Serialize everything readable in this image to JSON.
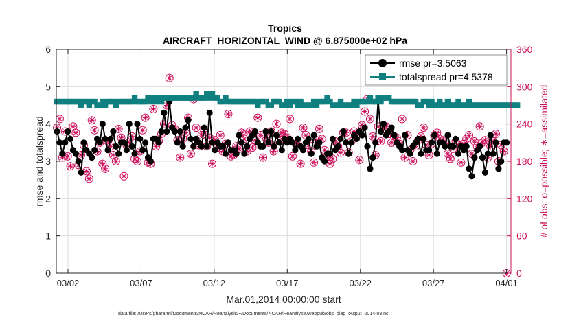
{
  "chart_data": {
    "type": "line",
    "title_line1": "Tropics",
    "title_line2": "AIRCRAFT_HORIZONTAL_WIND @ 6.875000e+02 hPa",
    "xlabel": "Mar.01,2014 00:00:00 start",
    "ylabel_left": "rmse and totalspread",
    "ylabel_right": "# of obs: o=possible; ∗=assimilated",
    "footer": "data file: /Users/gharamti/Documents/NCAR/Reanalysis/~/Documents/NCAR/Reanalysis/webpub/obs_diag_output_2014-03.nc",
    "x_range_days": [
      0.2,
      31.3
    ],
    "ylim_left": [
      0,
      6
    ],
    "ylim_right": [
      0,
      360
    ],
    "x_ticks": [
      {
        "day": 1,
        "label": "03/02"
      },
      {
        "day": 6,
        "label": "03/07"
      },
      {
        "day": 11,
        "label": "03/12"
      },
      {
        "day": 16,
        "label": "03/17"
      },
      {
        "day": 21,
        "label": "03/22"
      },
      {
        "day": 26,
        "label": "03/27"
      },
      {
        "day": 31,
        "label": "04/01"
      }
    ],
    "y_ticks_left": [
      0,
      1,
      2,
      3,
      4,
      5,
      6
    ],
    "y_ticks_right": [
      0,
      60,
      120,
      180,
      240,
      300,
      360
    ],
    "colors": {
      "rmse": "#000000",
      "spread": "#0f7f7f",
      "obs": "#cc0f5a"
    },
    "legend": [
      {
        "series": "rmse",
        "label": "rmse pr=3.5063"
      },
      {
        "series": "spread",
        "label": "totalspread pr=4.5378"
      }
    ],
    "series_rmse": [
      3.8,
      3.5,
      3.2,
      3.5,
      3.8,
      3.6,
      3.3,
      3.2,
      3.0,
      2.7,
      3.5,
      3.3,
      3.2,
      3.1,
      3.3,
      3.6,
      3.5,
      4.0,
      3.6,
      3.3,
      3.6,
      3.8,
      3.4,
      3.2,
      3.5,
      3.5,
      3.3,
      4.0,
      3.4,
      3.2,
      4.0,
      3.6,
      3.3,
      3.5,
      3.1,
      3.0,
      3.6,
      3.6,
      3.5,
      3.8,
      4.3,
      3.8,
      4.6,
      3.9,
      3.8,
      3.5,
      3.8,
      3.4,
      3.9,
      4.1,
      3.6,
      3.4,
      3.6,
      3.5,
      3.4,
      3.9,
      3.4,
      4.3,
      3.5,
      3.3,
      3.5,
      3.4,
      3.4,
      3.2,
      3.5,
      3.3,
      3.3,
      3.2,
      3.7,
      3.5,
      3.2,
      3.4,
      3.6,
      3.7,
      3.8,
      3.5,
      3.4,
      3.4,
      3.8,
      3.5,
      3.8,
      3.4,
      3.7,
      3.5,
      3.3,
      3.6,
      3.5,
      3.6,
      3.5,
      3.3,
      3.6,
      3.4,
      3.3,
      3.5,
      3.6,
      3.2,
      3.7,
      3.4,
      3.5,
      3.1,
      3.0,
      3.2,
      3.2,
      3.6,
      3.3,
      3.4,
      3.6,
      3.8,
      3.5,
      3.2,
      3.5,
      3.7,
      3.6,
      3.8,
      3.7,
      3.9,
      3.4,
      2.8,
      3.1,
      3.5,
      4.6,
      3.8,
      4.0,
      3.7,
      3.8,
      3.9,
      3.7,
      3.5,
      3.4,
      3.3,
      3.7,
      3.3,
      3.2,
      3.4,
      3.5,
      3.6,
      3.2,
      3.6,
      3.3,
      3.3,
      3.5,
      3.7,
      3.2,
      3.5,
      3.5,
      3.4,
      3.7,
      3.4,
      3.4,
      3.6,
      3.2,
      3.4,
      3.3,
      3.4,
      2.8,
      2.6,
      3.1,
      3.3,
      3.4,
      3.1,
      2.7,
      3.2,
      3.7,
      3.2,
      3.5,
      2.8,
      3.0,
      3.5,
      3.5
    ],
    "series_spread": [
      4.6,
      4.6,
      4.6,
      4.6,
      4.6,
      4.6,
      4.6,
      4.6,
      4.6,
      4.5,
      4.6,
      4.6,
      4.5,
      4.6,
      4.6,
      4.5,
      4.5,
      4.6,
      4.5,
      4.6,
      4.6,
      4.6,
      4.5,
      4.6,
      4.6,
      4.6,
      4.6,
      4.6,
      4.6,
      4.7,
      4.6,
      4.6,
      4.6,
      4.6,
      4.7,
      4.6,
      4.7,
      4.6,
      4.7,
      4.6,
      4.7,
      4.7,
      4.7,
      4.7,
      4.7,
      4.7,
      4.7,
      4.7,
      4.7,
      4.7,
      4.7,
      4.7,
      4.8,
      4.7,
      4.7,
      4.7,
      4.8,
      4.7,
      4.8,
      4.7,
      4.7,
      4.6,
      4.6,
      4.7,
      4.6,
      4.6,
      4.6,
      4.6,
      4.6,
      4.6,
      4.6,
      4.6,
      4.6,
      4.6,
      4.6,
      4.5,
      4.6,
      4.6,
      4.6,
      4.5,
      4.5,
      4.6,
      4.6,
      4.6,
      4.5,
      4.5,
      4.6,
      4.5,
      4.6,
      4.6,
      4.5,
      4.6,
      4.5,
      4.5,
      4.5,
      4.5,
      4.6,
      4.5,
      4.6,
      4.6,
      4.6,
      4.7,
      4.6,
      4.5,
      4.5,
      4.5,
      4.6,
      4.5,
      4.5,
      4.5,
      4.5,
      4.6,
      4.5,
      4.6,
      4.6,
      4.6,
      4.6,
      4.7,
      4.6,
      4.6,
      4.7,
      4.6,
      4.7,
      4.7,
      4.7,
      4.6,
      4.6,
      4.6,
      4.6,
      4.6,
      4.6,
      4.6,
      4.6,
      4.6,
      4.6,
      4.5,
      4.5,
      4.6,
      4.6,
      4.5,
      4.6,
      4.5,
      4.5,
      4.6,
      4.5,
      4.5,
      4.6,
      4.5,
      4.5,
      4.5,
      4.6,
      4.5,
      4.5,
      4.5,
      4.6,
      4.5,
      4.5,
      4.5,
      4.5,
      4.5,
      4.5,
      4.5,
      4.5,
      4.5,
      4.5,
      4.5,
      4.5,
      4.5,
      4.5,
      4.5,
      4.5,
      4.5,
      4.5
    ],
    "obs_counts": [
      234,
      248,
      186,
      228,
      188,
      172,
      236,
      226,
      174,
      190,
      206,
      164,
      152,
      246,
      230,
      196,
      210,
      176,
      168,
      212,
      204,
      190,
      180,
      232,
      218,
      156,
      206,
      210,
      220,
      184,
      180,
      196,
      230,
      250,
      178,
      176,
      264,
      204,
      212,
      224,
      240,
      270,
      314,
      238,
      232,
      214,
      186,
      216,
      226,
      250,
      192,
      280,
      234,
      206,
      222,
      228,
      204,
      218,
      176,
      214,
      202,
      222,
      196,
      208,
      256,
      188,
      190,
      204,
      200,
      226,
      216,
      196,
      228,
      202,
      214,
      250,
      222,
      186,
      218,
      210,
      228,
      196,
      240,
      212,
      226,
      224,
      218,
      248,
      188,
      210,
      208,
      176,
      234,
      222,
      206,
      196,
      178,
      214,
      232,
      216,
      198,
      188,
      176,
      184,
      212,
      204,
      194,
      226,
      226,
      194,
      212,
      228,
      222,
      182,
      238,
      260,
      280,
      248,
      220,
      190,
      236,
      212,
      232,
      236,
      224,
      210,
      220,
      218,
      208,
      248,
      186,
      222,
      198,
      180,
      204,
      214,
      220,
      234,
      206,
      190,
      208,
      222,
      226,
      216,
      214,
      208,
      192,
      184,
      200,
      212,
      206,
      178,
      208,
      216,
      222,
      192,
      212,
      204,
      236,
      210,
      214,
      186,
      204,
      212,
      224,
      180,
      206,
      196,
      0
    ]
  }
}
